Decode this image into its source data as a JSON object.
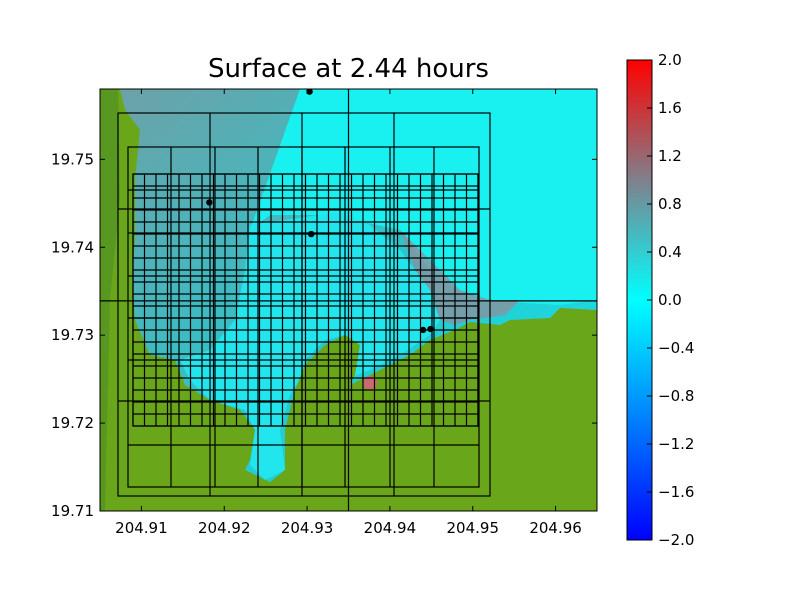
{
  "chart_data": {
    "type": "heatmap",
    "title": "Surface at 2.44 hours",
    "xlabel": "",
    "ylabel": "",
    "xlim": [
      204.905,
      204.965
    ],
    "ylim": [
      19.71,
      19.758
    ],
    "x_ticks": [
      "204.91",
      "204.92",
      "204.93",
      "204.94",
      "204.95",
      "204.96"
    ],
    "x_tick_values": [
      204.91,
      204.92,
      204.93,
      204.94,
      204.95,
      204.96
    ],
    "y_ticks": [
      "19.71",
      "19.72",
      "19.73",
      "19.74",
      "19.75"
    ],
    "y_tick_values": [
      19.71,
      19.72,
      19.73,
      19.74,
      19.75
    ],
    "colorbar": {
      "range": [
        -2.0,
        2.0
      ],
      "ticks": [
        "2.0",
        "1.6",
        "1.2",
        "0.8",
        "0.4",
        "0.0",
        "−0.4",
        "−0.8",
        "−1.2",
        "−1.6",
        "−2.0"
      ],
      "tick_values": [
        2.0,
        1.6,
        1.2,
        0.8,
        0.4,
        0.0,
        -0.4,
        -0.8,
        -1.2,
        -1.6,
        -2.0
      ],
      "colors": {
        "min": "#0000ff",
        "zero": "#00ffff",
        "mid": "#80808c",
        "max": "#ff0000"
      }
    },
    "land_color": "#6aa61a",
    "gauges": [
      {
        "x": 204.9303,
        "y": 19.7577
      },
      {
        "x": 204.9182,
        "y": 19.7451
      },
      {
        "x": 204.9305,
        "y": 19.7415
      },
      {
        "x": 204.944,
        "y": 19.7306
      },
      {
        "x": 204.9449,
        "y": 19.7307
      }
    ],
    "crosshair": {
      "x": 204.935,
      "y": 19.7339
    }
  }
}
